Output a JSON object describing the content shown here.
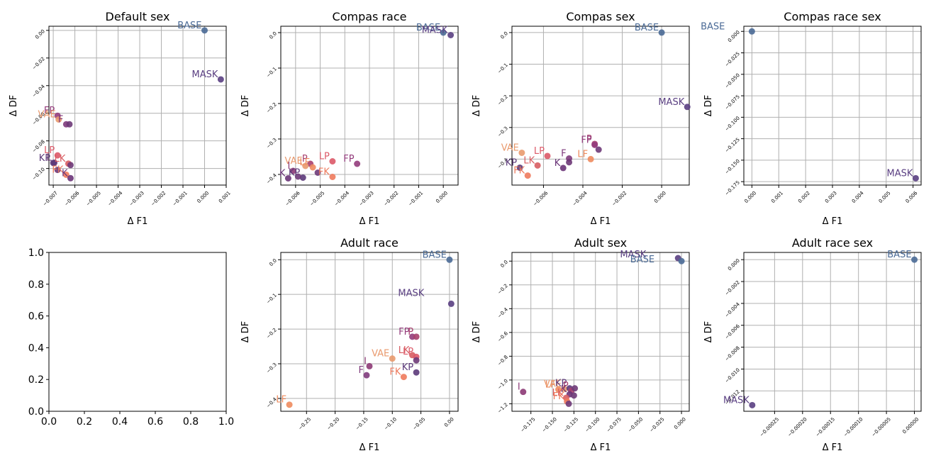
{
  "colors": {
    "BASE": "#4a6a96",
    "MASK": "#5a3f82",
    "KP": "#5c3a7a",
    "K": "#6a3478",
    "FP": "#933c7c",
    "P": "#a8406e",
    "I": "#8d3a76",
    "LK": "#d85d62",
    "LP": "#dc5968",
    "F": "#7f3b7c",
    "VAE": "#e99a6e",
    "LF": "#ee8b5e",
    "FK": "#ee7a5c",
    "L": "#6e3a78"
  },
  "chart_data": [
    {
      "type": "scatter",
      "title": "Default sex",
      "xlabel": "Δ F1",
      "ylabel": "Δ DF",
      "xlim": [
        -0.0072,
        0.001
      ],
      "ylim": [
        -0.112,
        0.003
      ],
      "xticks": [
        -0.007,
        -0.006,
        -0.005,
        -0.004,
        -0.003,
        -0.002,
        -0.001,
        0.0,
        0.001
      ],
      "xtick_labels": [
        "−0.007",
        "−0.006",
        "−0.005",
        "−0.004",
        "−0.003",
        "−0.002",
        "−0.001",
        "0.000",
        "0.001"
      ],
      "yticks": [
        0.0,
        -0.02,
        -0.04,
        -0.06,
        -0.08,
        -0.1
      ],
      "ytick_labels": [
        "0.00",
        "−0.02",
        "−0.04",
        "−0.06",
        "−0.08",
        "−0.10"
      ],
      "grid": true,
      "points": [
        {
          "label": "BASE",
          "x": 0.0,
          "y": 0.0
        },
        {
          "label": "MASK",
          "x": 0.00075,
          "y": -0.0355
        },
        {
          "label": "FP",
          "x": -0.0068,
          "y": -0.0618
        },
        {
          "label": "VAE",
          "x": -0.00675,
          "y": -0.0645
        },
        {
          "label": "F",
          "x": -0.0064,
          "y": -0.068
        },
        {
          "label": "",
          "x": -0.00625,
          "y": -0.068
        },
        {
          "label": "LP",
          "x": -0.0068,
          "y": -0.0905
        },
        {
          "label": "LK",
          "x": -0.0063,
          "y": -0.0965
        },
        {
          "label": "",
          "x": -0.0062,
          "y": -0.0975
        },
        {
          "label": "L",
          "x": -0.00695,
          "y": -0.0958
        },
        {
          "label": "KP",
          "x": -0.007,
          "y": -0.096
        },
        {
          "label": "",
          "x": -0.0068,
          "y": -0.101
        },
        {
          "label": "FK",
          "x": -0.0064,
          "y": -0.1045
        },
        {
          "label": "K",
          "x": -0.0062,
          "y": -0.107
        }
      ]
    },
    {
      "type": "scatter",
      "title": "Compas race",
      "xlabel": "Δ F1",
      "ylabel": "Δ DF",
      "xlim": [
        -0.0066,
        0.0006
      ],
      "ylim": [
        -0.43,
        0.018
      ],
      "xticks": [
        -0.006,
        -0.005,
        -0.004,
        -0.003,
        -0.002,
        -0.001,
        0.0
      ],
      "xtick_labels": [
        "−0.006",
        "−0.005",
        "−0.004",
        "−0.003",
        "−0.002",
        "−0.001",
        "0.000"
      ],
      "yticks": [
        0.0,
        -0.1,
        -0.2,
        -0.3,
        -0.4
      ],
      "ytick_labels": [
        "0.0",
        "−0.1",
        "−0.2",
        "−0.3",
        "−0.4"
      ],
      "grid": true,
      "points": [
        {
          "label": "BASE",
          "x": 0.0,
          "y": 0.0
        },
        {
          "label": "MASK",
          "x": 0.0003,
          "y": -0.007
        },
        {
          "label": "FP",
          "x": -0.0035,
          "y": -0.37
        },
        {
          "label": "LP",
          "x": -0.0045,
          "y": -0.363
        },
        {
          "label": "P",
          "x": -0.0054,
          "y": -0.37
        },
        {
          "label": "VAE",
          "x": -0.0056,
          "y": -0.376
        },
        {
          "label": "LF",
          "x": -0.0053,
          "y": -0.38
        },
        {
          "label": "I",
          "x": -0.0061,
          "y": -0.39
        },
        {
          "label": "",
          "x": -0.0051,
          "y": -0.395
        },
        {
          "label": "FK",
          "x": -0.0045,
          "y": -0.407
        },
        {
          "label": "KP",
          "x": -0.0057,
          "y": -0.409
        },
        {
          "label": "K",
          "x": -0.0063,
          "y": -0.411
        },
        {
          "label": "",
          "x": -0.0059,
          "y": -0.406
        }
      ]
    },
    {
      "type": "scatter",
      "title": "Compas sex",
      "xlabel": "Δ F1",
      "ylabel": "Δ DF",
      "xlim": [
        -0.0076,
        0.0014
      ],
      "ylim": [
        -0.482,
        0.02
      ],
      "xticks": [
        -0.006,
        -0.004,
        -0.002,
        0.0
      ],
      "xtick_labels": [
        "−0.006",
        "−0.004",
        "−0.002",
        "0.000"
      ],
      "yticks": [
        0.0,
        -0.1,
        -0.2,
        -0.3,
        -0.4
      ],
      "ytick_labels": [
        "0.0",
        "−0.1",
        "−0.2",
        "−0.3",
        "−0.4"
      ],
      "grid": true,
      "points": [
        {
          "label": "BASE",
          "x": 0.0,
          "y": 0.0
        },
        {
          "label": "MASK",
          "x": 0.0013,
          "y": -0.235
        },
        {
          "label": "P",
          "x": -0.0034,
          "y": -0.352
        },
        {
          "label": "FP",
          "x": -0.0034,
          "y": -0.355
        },
        {
          "label": "",
          "x": -0.0032,
          "y": -0.37
        },
        {
          "label": "VAE",
          "x": -0.0071,
          "y": -0.38
        },
        {
          "label": "LP",
          "x": -0.0058,
          "y": -0.39
        },
        {
          "label": "LF",
          "x": -0.0036,
          "y": -0.4
        },
        {
          "label": "F",
          "x": -0.0047,
          "y": -0.398
        },
        {
          "label": "",
          "x": -0.0047,
          "y": -0.41
        },
        {
          "label": "LK",
          "x": -0.0063,
          "y": -0.42
        },
        {
          "label": "K",
          "x": -0.005,
          "y": -0.428
        },
        {
          "label": "KP",
          "x": -0.0072,
          "y": -0.427
        },
        {
          "label": "FK",
          "x": -0.0068,
          "y": -0.452
        }
      ]
    },
    {
      "type": "scatter",
      "title": "Compas race sex",
      "xlabel": "Δ F1",
      "ylabel": "Δ DF",
      "xlim": [
        -0.0003,
        0.0063
      ],
      "ylim": [
        -0.179,
        0.006
      ],
      "xticks": [
        0.0,
        0.001,
        0.002,
        0.003,
        0.004,
        0.005,
        0.006
      ],
      "xtick_labels": [
        "0.000",
        "0.001",
        "0.002",
        "0.003",
        "0.004",
        "0.005",
        "0.006"
      ],
      "yticks": [
        0.0,
        -0.025,
        -0.05,
        -0.075,
        -0.1,
        -0.125,
        -0.15,
        -0.175
      ],
      "ytick_labels": [
        "0.000",
        "−0.025",
        "−0.050",
        "−0.075",
        "−0.100",
        "−0.125",
        "−0.150",
        "−0.175"
      ],
      "grid": true,
      "points": [
        {
          "label": "BASE",
          "x": 0.0,
          "y": 0.0
        },
        {
          "label": "MASK",
          "x": 0.0061,
          "y": -0.171
        }
      ]
    },
    {
      "type": "scatter",
      "title": "",
      "xlabel": "",
      "ylabel": "",
      "xlim": [
        0.0,
        1.0
      ],
      "ylim": [
        0.0,
        1.0
      ],
      "xticks": [
        0.0,
        0.2,
        0.4,
        0.6,
        0.8,
        1.0
      ],
      "xtick_labels": [
        "0.0",
        "0.2",
        "0.4",
        "0.6",
        "0.8",
        "1.0"
      ],
      "yticks": [
        0.0,
        0.2,
        0.4,
        0.6,
        0.8,
        1.0
      ],
      "ytick_labels": [
        "0.0",
        "0.2",
        "0.4",
        "0.6",
        "0.8",
        "1.0"
      ],
      "grid": false,
      "large_ticks": true,
      "points": []
    },
    {
      "type": "scatter",
      "title": "Adult race",
      "xlabel": "Δ F1",
      "ylabel": "Δ DF",
      "xlim": [
        -0.295,
        0.015
      ],
      "ylim": [
        -0.437,
        0.021
      ],
      "xticks": [
        -0.25,
        -0.2,
        -0.15,
        -0.1,
        -0.05,
        0.0
      ],
      "xtick_labels": [
        "−0.25",
        "−0.20",
        "−0.15",
        "−0.10",
        "−0.05",
        "0.00"
      ],
      "yticks": [
        0.0,
        -0.1,
        -0.2,
        -0.3,
        -0.4
      ],
      "ytick_labels": [
        "0.0",
        "−0.1",
        "−0.2",
        "−0.3",
        "−0.4"
      ],
      "grid": true,
      "points": [
        {
          "label": "BASE",
          "x": 0.0,
          "y": 0.0
        },
        {
          "label": "MASK",
          "x": 0.003,
          "y": -0.127
        },
        {
          "label": "FP",
          "x": -0.065,
          "y": -0.222
        },
        {
          "label": "P",
          "x": -0.058,
          "y": -0.222
        },
        {
          "label": "LK",
          "x": -0.065,
          "y": -0.275
        },
        {
          "label": "LP",
          "x": -0.058,
          "y": -0.28
        },
        {
          "label": "",
          "x": -0.058,
          "y": -0.29
        },
        {
          "label": "VAE",
          "x": -0.1,
          "y": -0.285
        },
        {
          "label": "I",
          "x": -0.14,
          "y": -0.307
        },
        {
          "label": "KP",
          "x": -0.058,
          "y": -0.325
        },
        {
          "label": "F",
          "x": -0.145,
          "y": -0.333
        },
        {
          "label": "FK",
          "x": -0.08,
          "y": -0.338
        },
        {
          "label": "LF",
          "x": -0.28,
          "y": -0.418
        }
      ]
    },
    {
      "type": "scatter",
      "title": "Adult sex",
      "xlabel": "Δ F1",
      "ylabel": "Δ DF",
      "xlim": [
        -0.197,
        0.009
      ],
      "ylim": [
        -1.263,
        0.073
      ],
      "xticks": [
        -0.175,
        -0.15,
        -0.125,
        -0.1,
        -0.075,
        -0.05,
        -0.025,
        0.0
      ],
      "xtick_labels": [
        "−0.175",
        "−0.150",
        "−0.125",
        "−0.100",
        "−0.075",
        "−0.050",
        "−0.025",
        "0.000"
      ],
      "yticks": [
        0.0,
        -0.2,
        -0.4,
        -0.6,
        -0.8,
        -1.0,
        -1.2
      ],
      "ytick_labels": [
        "0.0",
        "−0.2",
        "−0.4",
        "−0.6",
        "−0.8",
        "−1.0",
        "−1.2"
      ],
      "grid": true,
      "points": [
        {
          "label": "MASK",
          "x": -0.004,
          "y": 0.025
        },
        {
          "label": "BASE",
          "x": 0.0,
          "y": 0.0
        },
        {
          "label": "I",
          "x": -0.184,
          "y": -1.1
        },
        {
          "label": "LF",
          "x": -0.143,
          "y": -1.08
        },
        {
          "label": "VAE",
          "x": -0.136,
          "y": -1.075
        },
        {
          "label": "KP",
          "x": -0.13,
          "y": -1.07
        },
        {
          "label": "P",
          "x": -0.128,
          "y": -1.09
        },
        {
          "label": "",
          "x": -0.124,
          "y": -1.07
        },
        {
          "label": "K",
          "x": -0.13,
          "y": -1.12
        },
        {
          "label": "",
          "x": -0.125,
          "y": -1.13
        },
        {
          "label": "LK",
          "x": -0.134,
          "y": -1.15
        },
        {
          "label": "FK",
          "x": -0.133,
          "y": -1.18
        },
        {
          "label": "",
          "x": -0.131,
          "y": -1.2
        }
      ]
    },
    {
      "type": "scatter",
      "title": "Adult race sex",
      "xlabel": "Δ F1",
      "ylabel": "Δ DF",
      "xlim": [
        -0.000305,
        1.2e-05
      ],
      "ylim": [
        -0.01386,
        0.00066
      ],
      "xticks": [
        -0.00025,
        -0.0002,
        -0.00015,
        -0.0001,
        -5e-05,
        0.0
      ],
      "xtick_labels": [
        "−0.00025",
        "−0.00020",
        "−0.00015",
        "−0.00010",
        "−0.00005",
        "0.00000"
      ],
      "yticks": [
        0.0,
        -0.002,
        -0.004,
        -0.006,
        -0.008,
        -0.01,
        -0.012
      ],
      "ytick_labels": [
        "0.000",
        "−0.002",
        "−0.004",
        "−0.006",
        "−0.008",
        "−0.010",
        "−0.012"
      ],
      "grid": true,
      "points": [
        {
          "label": "BASE",
          "x": 0.0,
          "y": 0.0
        },
        {
          "label": "MASK",
          "x": -0.00029,
          "y": -0.0133
        }
      ]
    }
  ]
}
